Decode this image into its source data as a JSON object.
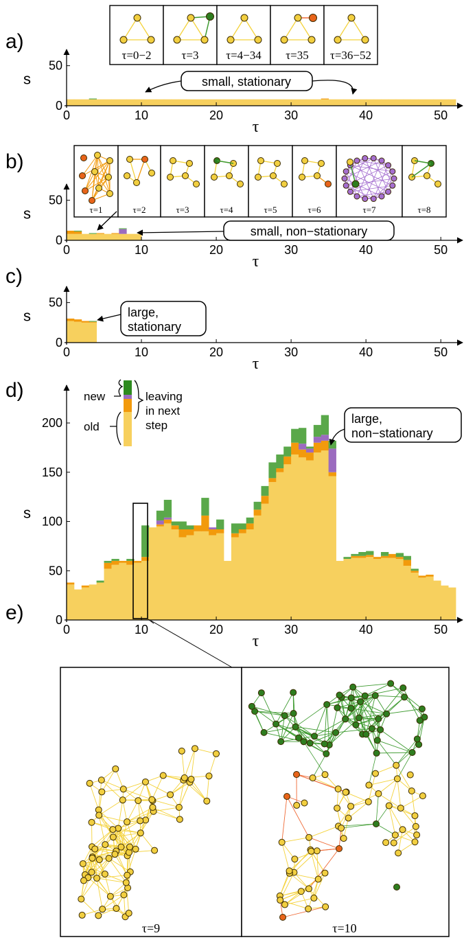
{
  "colors": {
    "old": "#f7d05e",
    "leaving": "#f29a0c",
    "new": "#5aa84a",
    "leaving_new": "#9b6bbf",
    "node_old": "#f2cf40",
    "node_new": "#2e7d1f",
    "node_leave": "#e8641a",
    "edge_old": "#f4d23a",
    "edge_new": "#3d9a2f",
    "edge_leave": "#ef6a36",
    "edge_purple": "#a56fd0"
  },
  "panels": {
    "a": {
      "label": "a)",
      "annotation": "small, stationary",
      "insets": [
        "τ=0−2",
        "τ=3",
        "τ=4−34",
        "τ=35",
        "τ=36−52"
      ]
    },
    "b": {
      "label": "b)",
      "annotation": "small, non−stationary",
      "insets": [
        "τ=1",
        "τ=2",
        "τ=3",
        "τ=4",
        "τ=5",
        "τ=6",
        "τ=7",
        "τ=8"
      ]
    },
    "c": {
      "label": "c)",
      "annotation_line1": "large,",
      "annotation_line2": "stationary"
    },
    "d": {
      "label": "d)",
      "annotation_line1": "large,",
      "annotation_line2": "non−stationary",
      "legend": {
        "new": "new",
        "old": "old",
        "leaving1": "leaving",
        "leaving2": "in next",
        "leaving3": "step"
      }
    },
    "e": {
      "label": "e)",
      "left_caption": "τ=9",
      "right_caption": "τ=10"
    }
  },
  "chart_data": [
    {
      "id": "a",
      "type": "area",
      "xlabel": "τ",
      "ylabel": "s",
      "xlim": [
        0,
        52
      ],
      "ylim": [
        0,
        60
      ],
      "xticks": [
        0,
        10,
        20,
        30,
        40,
        50
      ],
      "yticks": [
        0,
        50
      ],
      "series": [
        {
          "name": "old",
          "values": [
            8,
            8,
            8,
            8,
            8,
            8,
            8,
            8,
            8,
            8,
            8,
            8,
            8,
            8,
            8,
            8,
            8,
            8,
            8,
            8,
            8,
            8,
            8,
            8,
            8,
            8,
            8,
            8,
            8,
            8,
            8,
            8,
            8,
            8,
            8,
            8,
            8,
            8,
            8,
            8,
            8,
            8,
            8,
            8,
            8,
            8,
            8,
            8,
            8,
            8,
            8,
            8
          ]
        },
        {
          "name": "leaving",
          "values": [
            0,
            0,
            0,
            0,
            0,
            0,
            0,
            0,
            0,
            0,
            0,
            0,
            0,
            0,
            0,
            0,
            0,
            0,
            0,
            0,
            0,
            0,
            0,
            0,
            0,
            0,
            0,
            0,
            0,
            0,
            0,
            0,
            0,
            0,
            1,
            0,
            0,
            0,
            0,
            0,
            0,
            0,
            0,
            0,
            0,
            0,
            0,
            0,
            0,
            0,
            0,
            0
          ]
        },
        {
          "name": "new",
          "values": [
            0,
            0,
            0,
            1,
            0,
            0,
            0,
            0,
            0,
            0,
            0,
            0,
            0,
            0,
            0,
            0,
            0,
            0,
            0,
            0,
            0,
            0,
            0,
            0,
            0,
            0,
            0,
            0,
            0,
            0,
            0,
            0,
            0,
            0,
            0,
            0,
            0,
            0,
            0,
            0,
            0,
            0,
            0,
            0,
            0,
            0,
            0,
            0,
            0,
            0,
            0,
            0
          ]
        }
      ]
    },
    {
      "id": "b",
      "type": "area",
      "xlabel": "τ",
      "ylabel": "s",
      "xlim": [
        0,
        52
      ],
      "ylim": [
        0,
        60
      ],
      "xticks": [
        0,
        10,
        20,
        30,
        40,
        50
      ],
      "yticks": [
        0,
        50
      ],
      "series": [
        {
          "name": "old",
          "values": [
            8,
            8,
            8,
            8,
            8,
            8,
            8,
            8,
            8,
            8
          ]
        },
        {
          "name": "leaving",
          "values": [
            4,
            3,
            0,
            0,
            1,
            0,
            1,
            0,
            0,
            0
          ]
        },
        {
          "name": "leaving_new",
          "values": [
            0,
            0,
            0,
            0,
            0,
            0,
            0,
            6,
            0,
            0
          ]
        },
        {
          "name": "new",
          "values": [
            0,
            1,
            0,
            1,
            0,
            0,
            0,
            1,
            0,
            0
          ]
        }
      ]
    },
    {
      "id": "c",
      "type": "area",
      "xlabel": "τ",
      "ylabel": "s",
      "xlim": [
        0,
        52
      ],
      "ylim": [
        0,
        60
      ],
      "xticks": [
        0,
        10,
        20,
        30,
        40,
        50
      ],
      "yticks": [
        0,
        50
      ],
      "series": [
        {
          "name": "old",
          "values": [
            27,
            26,
            25,
            25
          ]
        },
        {
          "name": "leaving",
          "values": [
            3,
            3,
            2,
            1
          ]
        },
        {
          "name": "new",
          "values": [
            0,
            0,
            0,
            1
          ]
        }
      ]
    },
    {
      "id": "d",
      "type": "area",
      "xlabel": "τ",
      "ylabel": "s",
      "xlim": [
        0,
        52
      ],
      "ylim": [
        0,
        230
      ],
      "xticks": [
        0,
        10,
        20,
        30,
        40,
        50
      ],
      "yticks": [
        0,
        50,
        100,
        150,
        200
      ],
      "series": [
        {
          "name": "old",
          "values": [
            36,
            31,
            33,
            36,
            38,
            52,
            56,
            58,
            56,
            58,
            60,
            94,
            95,
            98,
            92,
            84,
            86,
            90,
            90,
            86,
            88,
            60,
            84,
            88,
            92,
            106,
            118,
            140,
            150,
            158,
            168,
            165,
            162,
            170,
            172,
            146,
            60,
            62,
            63,
            63,
            64,
            62,
            63,
            63,
            62,
            55,
            48,
            43,
            44,
            40,
            35,
            33
          ]
        },
        {
          "name": "leaving",
          "values": [
            2,
            0,
            2,
            0,
            0,
            6,
            4,
            2,
            4,
            2,
            4,
            0,
            2,
            4,
            4,
            8,
            6,
            6,
            16,
            6,
            4,
            0,
            4,
            4,
            6,
            6,
            8,
            4,
            4,
            8,
            12,
            8,
            8,
            10,
            10,
            4,
            0,
            0,
            2,
            2,
            2,
            2,
            2,
            4,
            2,
            6,
            2,
            2,
            2,
            0,
            0,
            0
          ]
        },
        {
          "name": "leaving_new",
          "values": [
            0,
            0,
            0,
            0,
            0,
            0,
            0,
            0,
            0,
            0,
            0,
            0,
            4,
            2,
            0,
            0,
            0,
            0,
            0,
            2,
            0,
            0,
            0,
            0,
            0,
            0,
            0,
            0,
            0,
            0,
            0,
            6,
            4,
            6,
            6,
            24,
            0,
            0,
            0,
            0,
            0,
            0,
            0,
            0,
            0,
            0,
            0,
            0,
            0,
            0,
            0,
            0
          ]
        },
        {
          "name": "new",
          "values": [
            0,
            0,
            0,
            0,
            2,
            2,
            2,
            0,
            2,
            0,
            32,
            0,
            10,
            18,
            4,
            8,
            4,
            0,
            18,
            0,
            10,
            0,
            10,
            6,
            6,
            8,
            10,
            16,
            14,
            10,
            14,
            16,
            2,
            12,
            20,
            8,
            0,
            2,
            2,
            4,
            4,
            0,
            4,
            0,
            4,
            4,
            2,
            0,
            0,
            0,
            0,
            0
          ]
        }
      ]
    }
  ]
}
